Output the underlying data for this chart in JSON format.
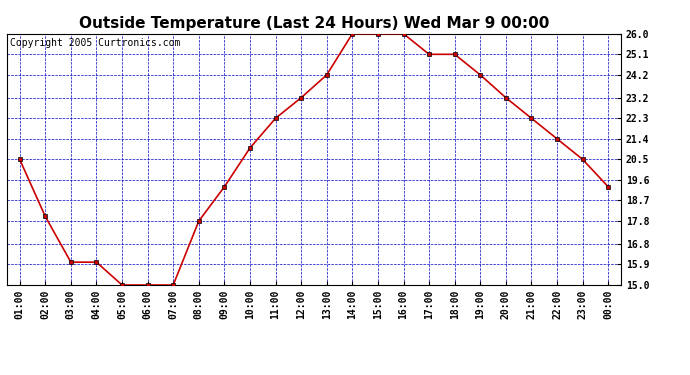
{
  "title": "Outside Temperature (Last 24 Hours) Wed Mar 9 00:00",
  "copyright": "Copyright 2005 Curtronics.com",
  "x_labels": [
    "01:00",
    "02:00",
    "03:00",
    "04:00",
    "05:00",
    "06:00",
    "07:00",
    "08:00",
    "09:00",
    "10:00",
    "11:00",
    "12:00",
    "13:00",
    "14:00",
    "15:00",
    "16:00",
    "17:00",
    "18:00",
    "19:00",
    "20:00",
    "21:00",
    "22:00",
    "23:00",
    "00:00"
  ],
  "y_values": [
    20.5,
    18.0,
    16.0,
    16.0,
    15.0,
    15.0,
    15.0,
    17.8,
    19.3,
    21.0,
    22.3,
    23.2,
    24.2,
    26.0,
    26.0,
    26.0,
    25.1,
    25.1,
    24.2,
    23.2,
    22.3,
    21.4,
    20.5,
    19.3
  ],
  "line_color": "#cc0000",
  "bg_color": "#ffffff",
  "grid_color": "#0000cc",
  "axis_color": "#000000",
  "y_min": 15.0,
  "y_max": 26.0,
  "y_ticks": [
    15.0,
    15.9,
    16.8,
    17.8,
    18.7,
    19.6,
    20.5,
    21.4,
    22.3,
    23.2,
    24.2,
    25.1,
    26.0
  ],
  "title_fontsize": 11,
  "tick_fontsize": 7,
  "copyright_fontsize": 7
}
